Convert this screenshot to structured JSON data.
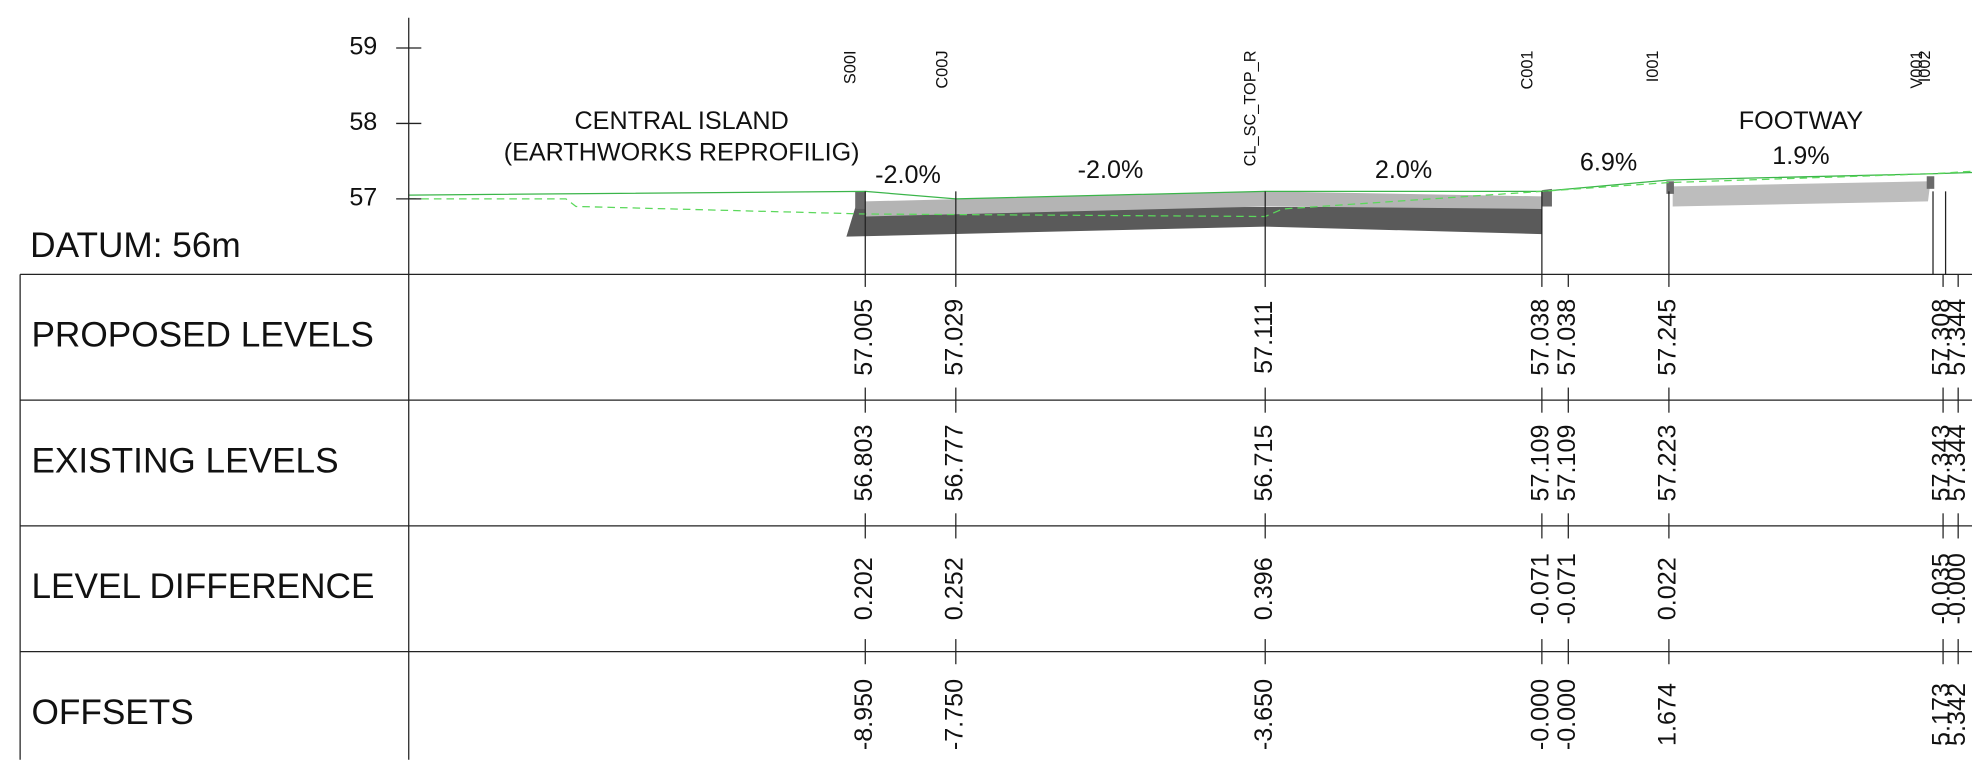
{
  "axis": {
    "ticks": [
      57,
      58,
      59
    ],
    "datum": "DATUM:  56m"
  },
  "annotations": {
    "island": [
      "CENTRAL ISLAND",
      "(EARTHWORKS REPROFILIG)"
    ],
    "footway": "FOOTWAY",
    "gradients": [
      "-2.0%",
      "-2.0%",
      "2.0%",
      "6.9%",
      "1.9%"
    ]
  },
  "points": [
    "S00I",
    "C00J",
    "CL_SC_TOP_R",
    "C001",
    "I001",
    "V001",
    "I002"
  ],
  "table": {
    "rows": [
      {
        "title": "PROPOSED LEVELS",
        "values": [
          "57.005",
          "57.029",
          "57.111",
          "57.038",
          "57.038",
          "57.245",
          "57.308",
          "57.344"
        ]
      },
      {
        "title": "EXISTING LEVELS",
        "values": [
          "56.803",
          "56.777",
          "56.715",
          "57.109",
          "57.109",
          "57.223",
          "57.343",
          "57.344"
        ]
      },
      {
        "title": "LEVEL DIFFERENCE",
        "values": [
          "0.202",
          "0.252",
          "0.396",
          "-0.071",
          "-0.071",
          "0.022",
          "-0.035",
          "-0.000"
        ]
      },
      {
        "title": "OFFSETS",
        "values": [
          "-8.950",
          "-7.750",
          "-3.650",
          "-0.000",
          "-0.000",
          "1.674",
          "5.173",
          "5.342"
        ]
      }
    ]
  }
}
